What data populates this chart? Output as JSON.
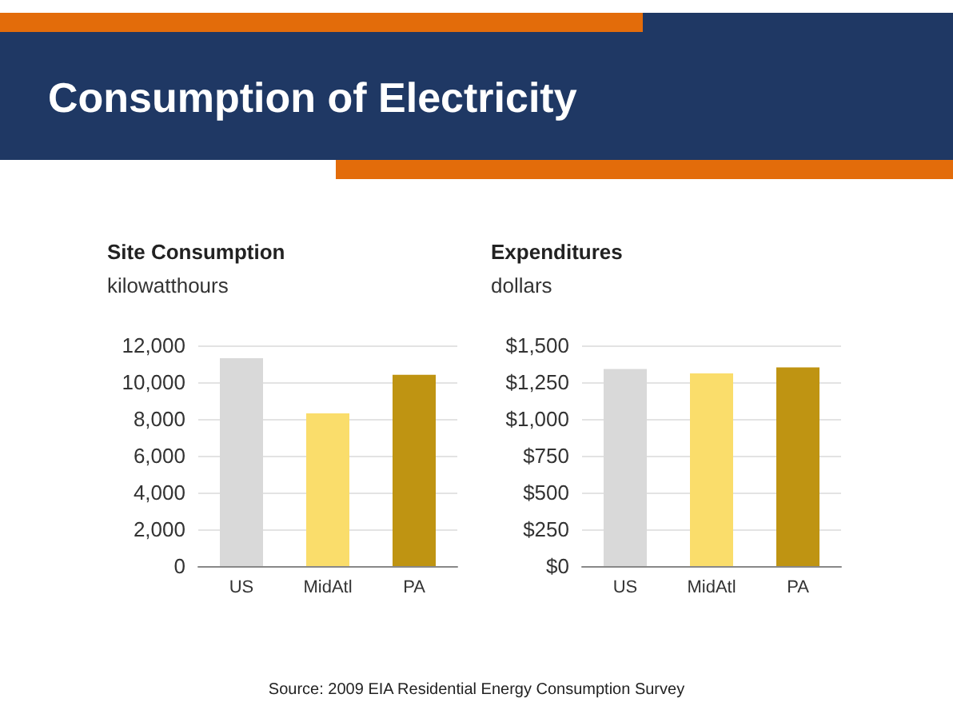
{
  "chart_data": [
    {
      "type": "bar",
      "title": "Site Consumption",
      "subtitle": "kilowatthours",
      "categories": [
        "US",
        "MidAtl",
        "PA"
      ],
      "values": [
        11300,
        8300,
        10400
      ],
      "colors": [
        "#d9d9d9",
        "#fadd6b",
        "#bf9412"
      ],
      "ylim": [
        0,
        12000
      ],
      "yticks": [
        0,
        {
          "value": 2000,
          "label": "2,000"
        },
        {
          "value": 4000,
          "label": "4,000"
        },
        {
          "value": 6000,
          "label": "6,000"
        },
        {
          "value": 8000,
          "label": "8,000"
        },
        {
          "value": 10000,
          "label": "10,000"
        },
        {
          "value": 12000,
          "label": "12,000"
        }
      ],
      "grid": "y",
      "annotations": [
        "Consumption of Electricity",
        "Source: 2009 EIA Residential Energy Consumption Survey"
      ]
    },
    {
      "type": "bar",
      "title": "Expenditures",
      "subtitle": "dollars",
      "categories": [
        "US",
        "MidAtl",
        "PA"
      ],
      "values": [
        1340,
        1310,
        1350
      ],
      "colors": [
        "#d9d9d9",
        "#fadd6b",
        "#bf9412"
      ],
      "ylim": [
        0,
        1500
      ],
      "yticks": [
        {
          "value": 0,
          "label": "$0"
        },
        {
          "value": 250,
          "label": "$250"
        },
        {
          "value": 500,
          "label": "$500"
        },
        {
          "value": 750,
          "label": "$750"
        },
        {
          "value": 1000,
          "label": "$1,000"
        },
        {
          "value": 1250,
          "label": "$1,250"
        },
        {
          "value": 1500,
          "label": "$1,500"
        }
      ],
      "grid": "y"
    }
  ]
}
